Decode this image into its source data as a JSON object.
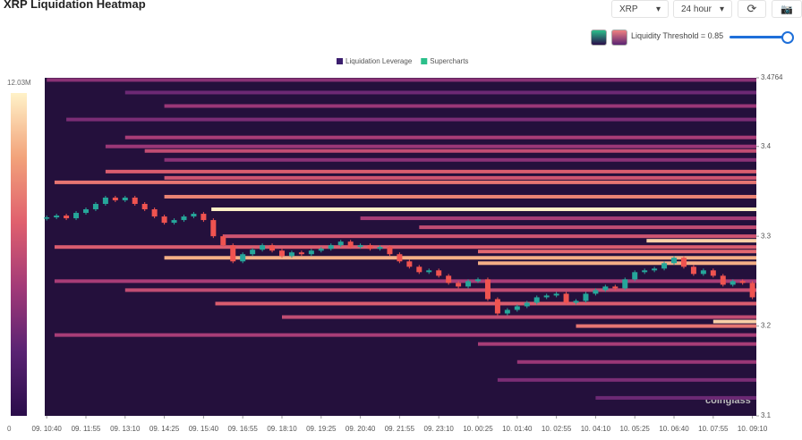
{
  "header": {
    "title": "XRP Liquidation Heatmap",
    "symbol": "XRP",
    "range": "24 hour",
    "threshold": "Liquidity Threshold = 0.85"
  },
  "chart_data": {
    "type": "heatmap",
    "legend": [
      "Liquidation Leverage",
      "Supercharts"
    ],
    "legend_colors": [
      "#3b1e6e",
      "#2bbf8a"
    ],
    "watermark": "coinglass",
    "colorscale": [
      "#2a0d4a",
      "#5a2373",
      "#a33a78",
      "#e0606e",
      "#f2a27a",
      "#fff2c8"
    ],
    "clim": [
      0,
      12030000
    ],
    "cticks": [
      0,
      {
        "value": 12030000,
        "label": "12.03M"
      }
    ],
    "ylim": [
      3.1,
      3.4764
    ],
    "yticks": [
      3.1,
      3.2,
      3.3,
      3.4,
      3.4764
    ],
    "xlim": [
      -0.05,
      18.1
    ],
    "xticks": [
      {
        "value": 0,
        "label": "09. 10:40"
      },
      {
        "value": 1,
        "label": "09. 11:55"
      },
      {
        "value": 2,
        "label": "09. 13:10"
      },
      {
        "value": 3,
        "label": "09. 14:25"
      },
      {
        "value": 4,
        "label": "09. 15:40"
      },
      {
        "value": 5,
        "label": "09. 16:55"
      },
      {
        "value": 6,
        "label": "09. 18:10"
      },
      {
        "value": 7,
        "label": "09. 19:25"
      },
      {
        "value": 8,
        "label": "09. 20:40"
      },
      {
        "value": 9,
        "label": "09. 21:55"
      },
      {
        "value": 10,
        "label": "09. 23:10"
      },
      {
        "value": 11,
        "label": "10. 00:25"
      },
      {
        "value": 12,
        "label": "10. 01:40"
      },
      {
        "value": 13,
        "label": "10. 02:55"
      },
      {
        "value": 14,
        "label": "10. 04:10"
      },
      {
        "value": 15,
        "label": "10. 05:25"
      },
      {
        "value": 16,
        "label": "10. 06:40"
      },
      {
        "value": 17,
        "label": "10. 07:55"
      },
      {
        "value": 18,
        "label": "10. 09:10"
      }
    ],
    "bands": [
      {
        "price": 3.474,
        "start": 0,
        "value": 4000000
      },
      {
        "price": 3.46,
        "start": 2,
        "value": 3000000
      },
      {
        "price": 3.445,
        "start": 3,
        "value": 4500000
      },
      {
        "price": 3.43,
        "start": 0.5,
        "value": 3500000
      },
      {
        "price": 3.41,
        "start": 2,
        "value": 5000000
      },
      {
        "price": 3.4,
        "start": 1.5,
        "value": 4500000
      },
      {
        "price": 3.395,
        "start": 2.5,
        "value": 6000000
      },
      {
        "price": 3.385,
        "start": 3,
        "value": 4000000
      },
      {
        "price": 3.372,
        "start": 1.5,
        "value": 7000000
      },
      {
        "price": 3.365,
        "start": 3,
        "value": 6500000
      },
      {
        "price": 3.36,
        "start": 0.2,
        "value": 8000000
      },
      {
        "price": 3.344,
        "start": 3,
        "value": 8500000
      },
      {
        "price": 3.33,
        "start": 4.2,
        "value": 12000000
      },
      {
        "price": 3.32,
        "start": 8,
        "value": 5000000
      },
      {
        "price": 3.31,
        "start": 9.5,
        "value": 6000000
      },
      {
        "price": 3.3,
        "start": 4.5,
        "value": 6500000
      },
      {
        "price": 3.295,
        "start": 15.3,
        "value": 11000000
      },
      {
        "price": 3.288,
        "start": 0.2,
        "value": 7000000
      },
      {
        "price": 3.283,
        "start": 11,
        "value": 7500000
      },
      {
        "price": 3.276,
        "start": 3,
        "value": 10000000
      },
      {
        "price": 3.27,
        "start": 11,
        "value": 10000000
      },
      {
        "price": 3.25,
        "start": 0.2,
        "value": 5000000
      },
      {
        "price": 3.24,
        "start": 2,
        "value": 6000000
      },
      {
        "price": 3.225,
        "start": 4.3,
        "value": 7000000
      },
      {
        "price": 3.21,
        "start": 6,
        "value": 6000000
      },
      {
        "price": 3.205,
        "start": 17,
        "value": 11000000
      },
      {
        "price": 3.2,
        "start": 13.5,
        "value": 8000000
      },
      {
        "price": 3.19,
        "start": 0.2,
        "value": 5000000
      },
      {
        "price": 3.18,
        "start": 11,
        "value": 5000000
      },
      {
        "price": 3.16,
        "start": 12,
        "value": 4500000
      },
      {
        "price": 3.14,
        "start": 11.5,
        "value": 3500000
      },
      {
        "price": 3.12,
        "start": 14,
        "value": 3000000
      }
    ],
    "price": {
      "x": [
        0,
        0.25,
        0.5,
        0.75,
        1,
        1.25,
        1.5,
        1.75,
        2,
        2.25,
        2.5,
        2.75,
        3,
        3.25,
        3.5,
        3.75,
        4,
        4.25,
        4.5,
        4.75,
        5,
        5.25,
        5.5,
        5.75,
        6,
        6.25,
        6.5,
        6.75,
        7,
        7.25,
        7.5,
        7.75,
        8,
        8.25,
        8.5,
        8.75,
        9,
        9.25,
        9.5,
        9.75,
        10,
        10.25,
        10.5,
        10.75,
        11,
        11.25,
        11.5,
        11.75,
        12,
        12.25,
        12.5,
        12.75,
        13,
        13.25,
        13.5,
        13.75,
        14,
        14.25,
        14.5,
        14.75,
        15,
        15.25,
        15.5,
        15.75,
        16,
        16.25,
        16.5,
        16.75,
        17,
        17.25,
        17.5,
        17.75,
        18
      ],
      "values": [
        3.321,
        3.323,
        3.32,
        3.326,
        3.33,
        3.336,
        3.343,
        3.34,
        3.343,
        3.336,
        3.33,
        3.322,
        3.315,
        3.318,
        3.322,
        3.325,
        3.318,
        3.3,
        3.29,
        3.272,
        3.28,
        3.285,
        3.29,
        3.284,
        3.278,
        3.282,
        3.28,
        3.284,
        3.286,
        3.29,
        3.294,
        3.288,
        3.29,
        3.286,
        3.288,
        3.28,
        3.272,
        3.266,
        3.26,
        3.262,
        3.256,
        3.248,
        3.244,
        3.25,
        3.252,
        3.23,
        3.214,
        3.218,
        3.222,
        3.226,
        3.232,
        3.234,
        3.236,
        3.226,
        3.228,
        3.236,
        3.24,
        3.244,
        3.242,
        3.252,
        3.26,
        3.262,
        3.264,
        3.27,
        3.276,
        3.266,
        3.258,
        3.262,
        3.256,
        3.246,
        3.25,
        3.248,
        3.232
      ],
      "up_color": "#26a69a",
      "down_color": "#ef5350"
    }
  }
}
